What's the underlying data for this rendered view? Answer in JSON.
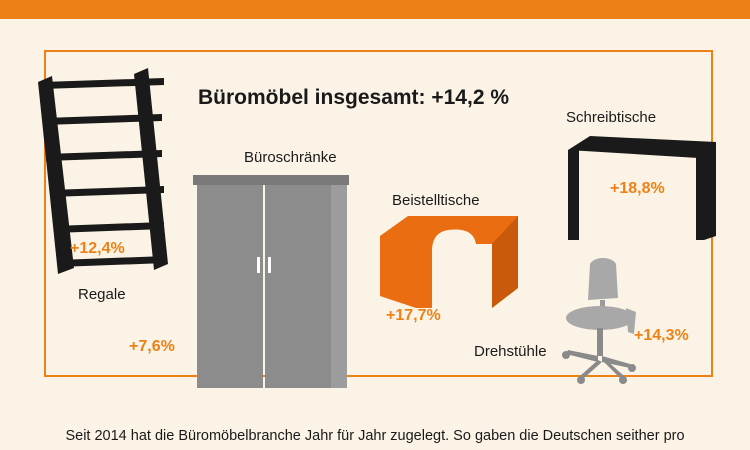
{
  "header_color": "#ee8116",
  "headline": "Büromöbel insgesamt: +14,2 %",
  "categories": [
    {
      "label": "Regale",
      "change": "+12,4%",
      "icon": "shelf-icon"
    },
    {
      "label": "Büroschränke",
      "change": "+7,6%",
      "icon": "cabinet-icon"
    },
    {
      "label": "Beistelltische",
      "change": "+17,7%",
      "icon": "side-table-icon"
    },
    {
      "label": "Schreibtische",
      "change": "+18,8%",
      "icon": "desk-icon"
    },
    {
      "label": "Drehstühle",
      "change": "+14,3%",
      "icon": "swivel-chair-icon"
    }
  ],
  "caption": "Seit 2014 hat die Büromöbelbranche Jahr für Jahr zugelegt. So gaben die Deutschen seither pro"
}
